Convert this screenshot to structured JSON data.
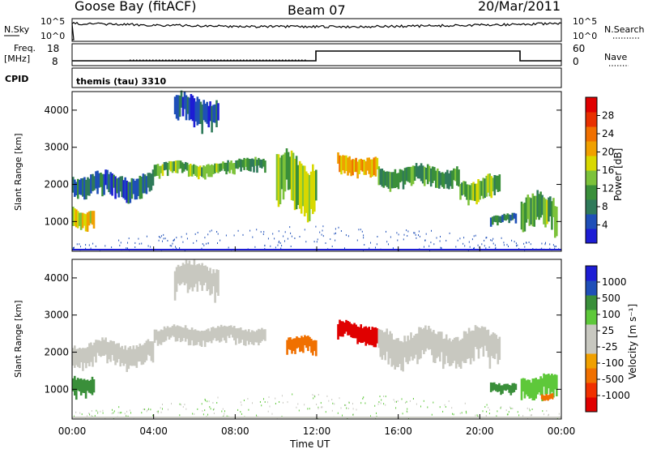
{
  "header": {
    "station": "Goose Bay (fitACF)",
    "beam": "Beam 07",
    "date": "20/Mar/2011"
  },
  "strips": {
    "nsky_label": "N.Sky",
    "nsky_ticks": [
      "10^5",
      "10^0"
    ],
    "nsearch_label": "N.Search",
    "nsearch_ticks": [
      "10^5",
      "10^0"
    ],
    "freq_label_1": "Freq.",
    "freq_label_2": "[MHz]",
    "freq_ticks": [
      "18",
      "8"
    ],
    "nave_label": "Nave",
    "nave_ticks": [
      "60",
      "0"
    ],
    "cpid_label": "CPID",
    "cpid_value": "themis (tau) 3310"
  },
  "colors": {
    "scale": [
      "#1d1dd4",
      "#1f4fb8",
      "#2f7a5a",
      "#3a8f3a",
      "#7cc23a",
      "#d8d800",
      "#f0a000",
      "#f07000",
      "#e83000",
      "#e00000"
    ],
    "velocity_scale": [
      "#e00000",
      "#f03000",
      "#f07000",
      "#f0a000",
      "#c8c8c0",
      "#c8c8c0",
      "#5ec83a",
      "#3a8f3a",
      "#1f4fb8",
      "#1d1dd4"
    ],
    "gray": "#c8c8c0"
  },
  "chart_data": [
    {
      "type": "heatmap",
      "panel": "power",
      "xlabel": "",
      "ylabel": "Slant Range [km]",
      "yticks": [
        "1000",
        "2000",
        "3000",
        "4000"
      ],
      "ylim": [
        200,
        4500
      ],
      "colorbar_label": "Power [dB]",
      "colorbar_ticks": [
        "4",
        "8",
        "12",
        "16",
        "20",
        "24",
        "28"
      ],
      "bands": [
        {
          "x": [
            0,
            1.1
          ],
          "ylo": 800,
          "yhi": 1400,
          "value": 16
        },
        {
          "x": [
            0,
            4
          ],
          "ylo": 1600,
          "yhi": 2300,
          "value": 6
        },
        {
          "x": [
            4,
            8
          ],
          "ylo": 2200,
          "yhi": 2600,
          "value": 12
        },
        {
          "x": [
            8,
            9.5
          ],
          "ylo": 2300,
          "yhi": 2700,
          "value": 10
        },
        {
          "x": [
            10,
            12
          ],
          "ylo": 1200,
          "yhi": 2800,
          "value": 14
        },
        {
          "x": [
            13,
            15
          ],
          "ylo": 2200,
          "yhi": 2800,
          "value": 20
        },
        {
          "x": [
            15,
            19
          ],
          "ylo": 1900,
          "yhi": 2500,
          "value": 10
        },
        {
          "x": [
            19,
            21
          ],
          "ylo": 1500,
          "yhi": 2200,
          "value": 12
        },
        {
          "x": [
            20.5,
            21.8
          ],
          "ylo": 900,
          "yhi": 1200,
          "value": 8
        },
        {
          "x": [
            22,
            23.8
          ],
          "ylo": 700,
          "yhi": 1700,
          "value": 12
        },
        {
          "x": [
            5,
            7.2
          ],
          "ylo": 3500,
          "yhi": 4400,
          "value": 5
        }
      ]
    },
    {
      "type": "heatmap",
      "panel": "velocity",
      "xlabel": "Time UT",
      "ylabel": "Slant Range [km]",
      "xticks": [
        "00:00",
        "04:00",
        "08:00",
        "12:00",
        "16:00",
        "20:00",
        "00:00"
      ],
      "yticks": [
        "1000",
        "2000",
        "3000",
        "4000"
      ],
      "ylim": [
        200,
        4500
      ],
      "colorbar_label": "Velocity [m s⁻¹]",
      "colorbar_ticks": [
        "1000",
        "500",
        "100",
        "25",
        "-25",
        "-100",
        "-500",
        "-1000"
      ],
      "bands": [
        {
          "x": [
            0,
            1.1
          ],
          "ylo": 800,
          "yhi": 1400,
          "value": 100
        },
        {
          "x": [
            0,
            4
          ],
          "ylo": 1600,
          "yhi": 2300,
          "value": 0
        },
        {
          "x": [
            4,
            9.5
          ],
          "ylo": 2200,
          "yhi": 2700,
          "value": 0
        },
        {
          "x": [
            10.5,
            12
          ],
          "ylo": 1900,
          "yhi": 2400,
          "value": -300
        },
        {
          "x": [
            13,
            15
          ],
          "ylo": 2200,
          "yhi": 2800,
          "value": -700
        },
        {
          "x": [
            15,
            21
          ],
          "ylo": 1600,
          "yhi": 2600,
          "value": 0
        },
        {
          "x": [
            20.5,
            21.8
          ],
          "ylo": 900,
          "yhi": 1200,
          "value": 150
        },
        {
          "x": [
            22,
            23.8
          ],
          "ylo": 700,
          "yhi": 1400,
          "value": 50
        },
        {
          "x": [
            23,
            23.6
          ],
          "ylo": 700,
          "yhi": 900,
          "value": -300
        },
        {
          "x": [
            5,
            7.2
          ],
          "ylo": 3500,
          "yhi": 4400,
          "value": 0
        }
      ]
    }
  ]
}
